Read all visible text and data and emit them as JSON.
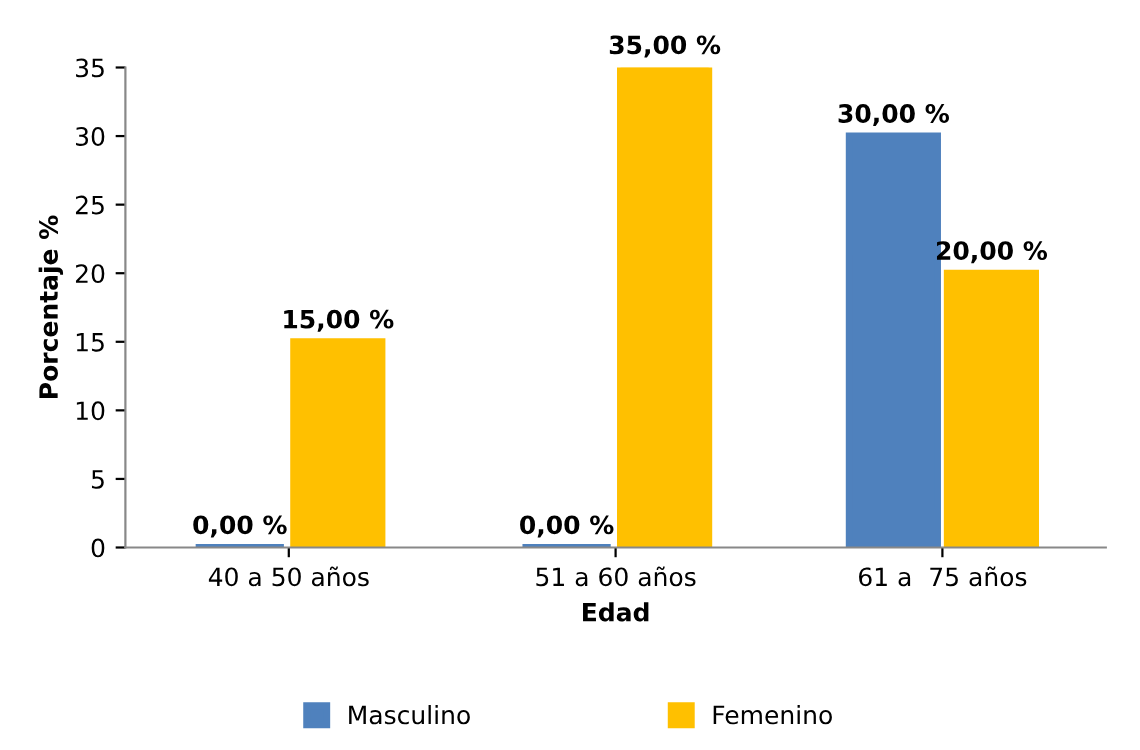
{
  "chart_data": {
    "type": "bar",
    "xlabel": "Edad",
    "ylabel": "Porcentaje %",
    "categories": [
      "40 a 50 años",
      "51 a 60 años",
      "61 a  75 años"
    ],
    "series": [
      {
        "name": "Masculino",
        "color": "#4f81bd",
        "values": [
          0,
          0,
          30
        ],
        "value_labels": [
          "0,00 %",
          "0,00 %",
          "30,00 %"
        ]
      },
      {
        "name": "Femenino",
        "color": "#ffc000",
        "values": [
          15,
          35,
          20
        ],
        "value_labels": [
          "15,00 %",
          "35,00 %",
          "20,00 %"
        ]
      }
    ],
    "ylim": [
      0,
      35
    ],
    "yticks": [
      0,
      5,
      10,
      15,
      20,
      25,
      30,
      35
    ],
    "legend": "bottom"
  }
}
